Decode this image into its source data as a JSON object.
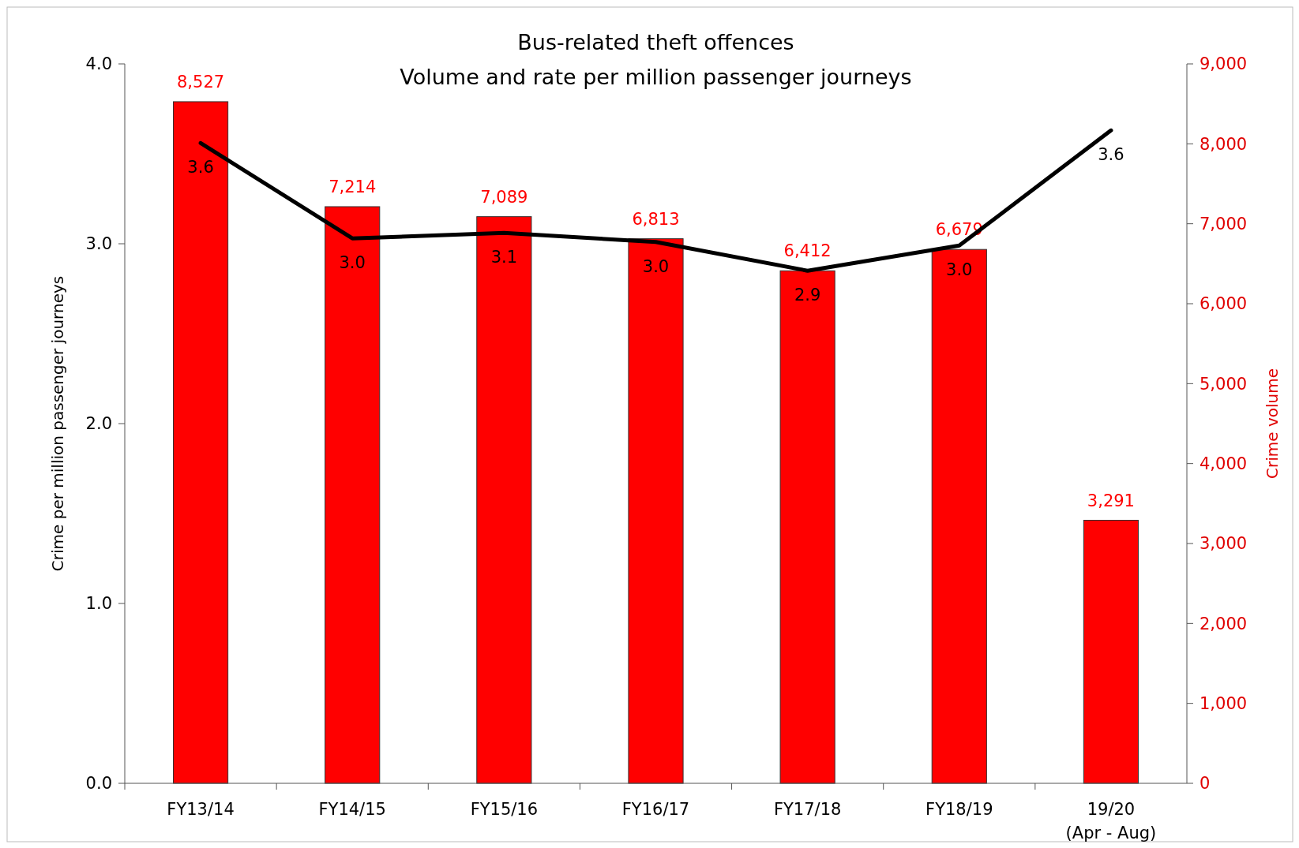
{
  "chart_data": {
    "type": "bar",
    "title": "Bus-related theft offences\nVolume and rate per million passenger journeys",
    "ylabel": "Crime per million passenger journeys",
    "y2label": "Crime volume",
    "categories": [
      "FY13/14",
      "FY14/15",
      "FY15/16",
      "FY16/17",
      "FY17/18",
      "FY18/19",
      "19/20\n(Apr - Aug)"
    ],
    "series": [
      {
        "axis": "y2",
        "color": "#ff0000",
        "values": [
          8527,
          7214,
          7089,
          6813,
          6412,
          6679,
          3291
        ],
        "value_labels": [
          "8,527",
          "7,214",
          "7,089",
          "6,813",
          "6,412",
          "6,679",
          "3,291"
        ]
      },
      {
        "type": "line",
        "axis": "y",
        "color": "#000000",
        "values": [
          3.56,
          3.03,
          3.06,
          3.01,
          2.85,
          2.99,
          3.63
        ],
        "value_labels": [
          "3.6",
          "3.0",
          "3.1",
          "3.0",
          "2.9",
          "3.0",
          "3.6"
        ]
      }
    ],
    "ylim": [
      0,
      4
    ],
    "yticks": [
      {
        "value": 0,
        "label": "0.0"
      },
      {
        "value": 1,
        "label": "1.0"
      },
      {
        "value": 2,
        "label": "2.0"
      },
      {
        "value": 3,
        "label": "3.0"
      },
      {
        "value": 4,
        "label": "4.0"
      }
    ],
    "y2lim": [
      0,
      9000
    ],
    "y2ticks": [
      0,
      {
        "value": 1000,
        "label": "1,000"
      },
      {
        "value": 2000,
        "label": "2,000"
      },
      {
        "value": 3000,
        "label": "3,000"
      },
      {
        "value": 4000,
        "label": "4,000"
      },
      {
        "value": 5000,
        "label": "5,000"
      },
      {
        "value": 6000,
        "label": "6,000"
      },
      {
        "value": 7000,
        "label": "7,000"
      },
      {
        "value": 8000,
        "label": "8,000"
      },
      {
        "value": 9000,
        "label": "9,000"
      }
    ],
    "grid": false,
    "marker": "none",
    "line_style": "solid"
  }
}
